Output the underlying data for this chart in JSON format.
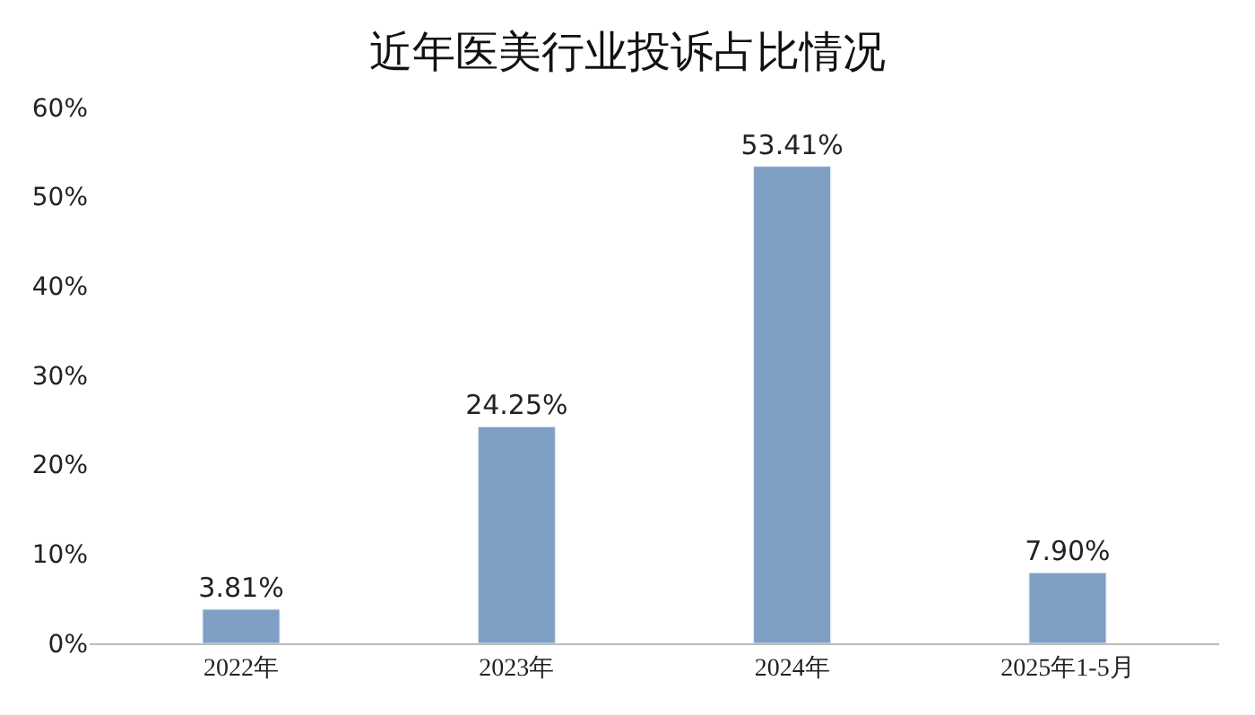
{
  "chart_data": {
    "type": "bar",
    "title": "近年医美行业投诉占比情况",
    "categories": [
      "2022年",
      "2023年",
      "2024年",
      "2025年1-5月"
    ],
    "values": [
      3.81,
      24.25,
      53.41,
      7.9
    ],
    "value_labels": [
      "3.81%",
      "24.25%",
      "53.41%",
      "7.90%"
    ],
    "color": "#7f9fc4",
    "ylim": [
      0,
      60
    ],
    "yticks": [
      {
        "value": 0,
        "label": "0%"
      },
      {
        "value": 10,
        "label": "10%"
      },
      {
        "value": 20,
        "label": "20%"
      },
      {
        "value": 30,
        "label": "30%"
      },
      {
        "value": 40,
        "label": "40%"
      },
      {
        "value": 50,
        "label": "50%"
      },
      {
        "value": 60,
        "label": "60%"
      }
    ],
    "legend": false
  }
}
